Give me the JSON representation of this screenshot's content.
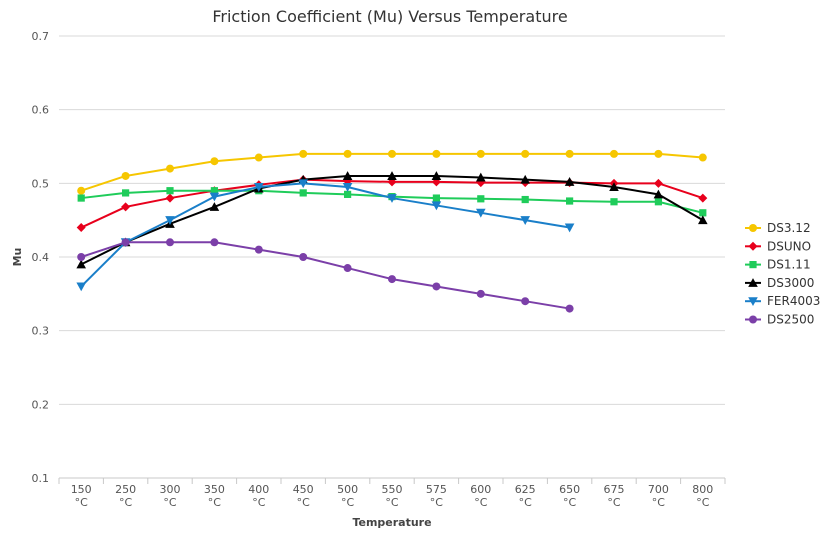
{
  "chart_data": {
    "type": "line",
    "title": "Friction Coefficient (Mu) Versus Temperature",
    "xlabel": "Temperature",
    "ylabel": "Mu",
    "categories": [
      [
        "150",
        "°C"
      ],
      [
        "250",
        "°C"
      ],
      [
        "300",
        "°C"
      ],
      [
        "350",
        "°C"
      ],
      [
        "400",
        "°C"
      ],
      [
        "450",
        "°C"
      ],
      [
        "500",
        "°C"
      ],
      [
        "550",
        "°C"
      ],
      [
        "575",
        "°C"
      ],
      [
        "600",
        "°C"
      ],
      [
        "625",
        "°C"
      ],
      [
        "650",
        "°C"
      ],
      [
        "675",
        "°C"
      ],
      [
        "700",
        "°C"
      ],
      [
        "800",
        "°C"
      ]
    ],
    "ylim": [
      0.1,
      0.7
    ],
    "yticks": [
      "0.1",
      "0.2",
      "0.3",
      "0.4",
      "0.5",
      "0.6",
      "0.7"
    ],
    "grid": true,
    "legend_position": "right",
    "series": [
      {
        "name": "DS3.12",
        "color": "#f6c600",
        "marker": "circle",
        "values": [
          0.49,
          0.51,
          0.52,
          0.53,
          0.535,
          0.54,
          0.54,
          0.54,
          0.54,
          0.54,
          0.54,
          0.54,
          0.54,
          0.54,
          0.535
        ]
      },
      {
        "name": "DSUNO",
        "color": "#e8001c",
        "marker": "diamond",
        "values": [
          0.44,
          0.468,
          0.48,
          0.49,
          0.498,
          0.505,
          0.503,
          0.502,
          0.502,
          0.501,
          0.501,
          0.501,
          0.5,
          0.5,
          0.48
        ]
      },
      {
        "name": "DS1.11",
        "color": "#1fcc5a",
        "marker": "square",
        "values": [
          0.48,
          0.487,
          0.49,
          0.49,
          0.49,
          0.487,
          0.485,
          0.482,
          0.48,
          0.479,
          0.478,
          0.476,
          0.475,
          0.475,
          0.46
        ]
      },
      {
        "name": "DS3000",
        "color": "#000000",
        "marker": "triangle",
        "values": [
          0.39,
          0.42,
          0.445,
          0.468,
          0.493,
          0.505,
          0.51,
          0.51,
          0.51,
          0.508,
          0.505,
          0.502,
          0.495,
          0.485,
          0.45
        ]
      },
      {
        "name": "FER4003",
        "color": "#1a7fc9",
        "marker": "triangle-down",
        "values": [
          0.36,
          0.42,
          0.45,
          0.482,
          0.495,
          0.5,
          0.495,
          0.48,
          0.47,
          0.46,
          0.45,
          0.44,
          null,
          null,
          null
        ]
      },
      {
        "name": "DS2500",
        "color": "#7b3fa8",
        "marker": "circle",
        "values": [
          0.4,
          0.42,
          0.42,
          0.42,
          0.41,
          0.4,
          0.385,
          0.37,
          0.36,
          0.35,
          0.34,
          0.33,
          null,
          null,
          null
        ]
      }
    ]
  }
}
